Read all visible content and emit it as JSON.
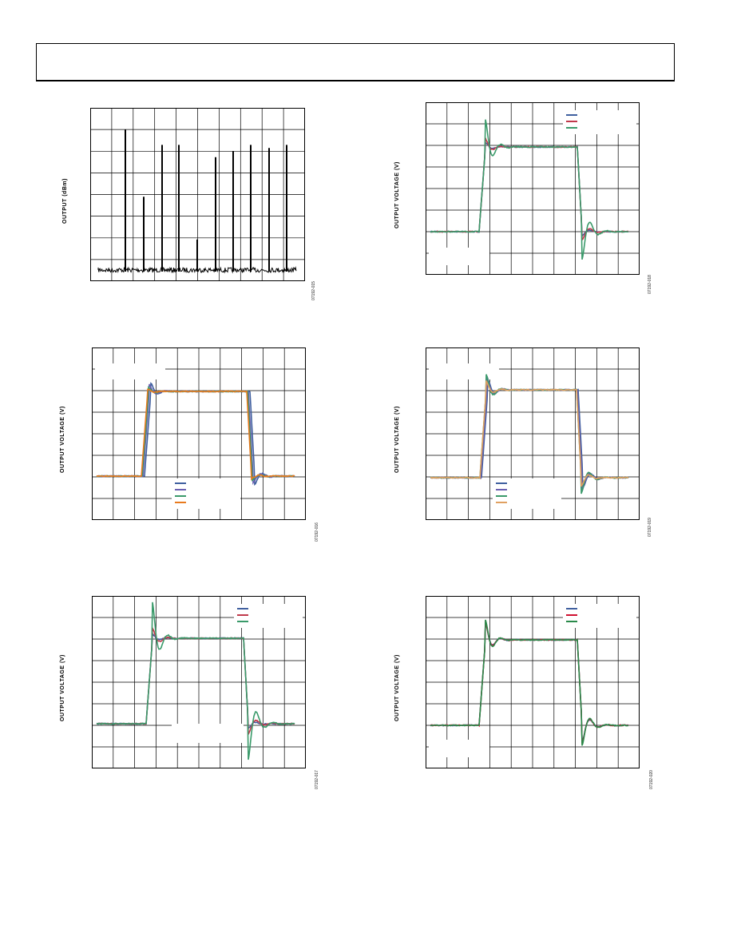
{
  "page": {
    "header_text": ""
  },
  "charts": [
    {
      "id": "c1",
      "ylabel": "OUTPUT (dBm)",
      "code": "07192-015",
      "type": "spectrum"
    },
    {
      "id": "c2",
      "ylabel": "OUTPUT VOLTAGE (V)",
      "code": "07192-018",
      "type": "pulse",
      "series": [
        {
          "color": "#3f5f9f"
        },
        {
          "color": "#c0394b"
        },
        {
          "color": "#3a9a6a"
        }
      ]
    },
    {
      "id": "c3",
      "ylabel": "OUTPUT VOLTAGE (V)",
      "code": "07192-016",
      "type": "pulse",
      "series": [
        {
          "color": "#3f5f9f"
        },
        {
          "color": "#6a5fb0"
        },
        {
          "color": "#3a9a6a"
        },
        {
          "color": "#e87a1e"
        }
      ]
    },
    {
      "id": "c4",
      "ylabel": "OUTPUT VOLTAGE (V)",
      "code": "07192-019",
      "type": "pulse",
      "series": [
        {
          "color": "#3f5f9f"
        },
        {
          "color": "#6a5fb0"
        },
        {
          "color": "#3a9a6a"
        },
        {
          "color": "#e0a060"
        }
      ]
    },
    {
      "id": "c5",
      "ylabel": "OUTPUT VOLTAGE (V)",
      "code": "07192-017",
      "type": "pulse",
      "series": [
        {
          "color": "#3f5f9f"
        },
        {
          "color": "#c0394b"
        },
        {
          "color": "#3a9a6a"
        }
      ]
    },
    {
      "id": "c6",
      "ylabel": "OUTPUT VOLTAGE (V)",
      "code": "07192-020",
      "type": "pulse",
      "series": [
        {
          "color": "#3f5f9f"
        },
        {
          "color": "#d01030"
        },
        {
          "color": "#2a8a4a"
        }
      ]
    }
  ],
  "chart_data": [
    {
      "type": "line",
      "title": "",
      "xlabel": "",
      "ylabel": "OUTPUT (dBm)",
      "grid": true,
      "legend": "none",
      "series": [
        {
          "values": [
            0.05,
            0.92,
            0.05,
            0.48,
            0.05,
            0.82,
            0.05,
            0.82,
            0.05,
            0.2,
            0.05,
            0.74,
            0.05,
            0.78,
            0.05,
            0.82,
            0.05,
            0.8,
            0.05,
            0.82,
            0.05,
            0.82
          ]
        }
      ]
    },
    {
      "type": "line",
      "title": "",
      "xlabel": "",
      "ylabel": "OUTPUT VOLTAGE (V)",
      "grid": true,
      "legend": "top-right",
      "series": [
        {
          "overshoot": 0.05
        },
        {
          "overshoot": 0.1
        },
        {
          "overshoot": 0.33
        }
      ]
    },
    {
      "type": "line",
      "title": "",
      "xlabel": "",
      "ylabel": "OUTPUT VOLTAGE (V)",
      "grid": true,
      "legend": "bottom-center",
      "series": [
        {
          "overshoot": 0.1
        },
        {
          "overshoot": 0.08
        },
        {
          "overshoot": 0.05
        },
        {
          "overshoot": 0.03
        }
      ]
    },
    {
      "type": "line",
      "title": "",
      "xlabel": "",
      "ylabel": "OUTPUT VOLTAGE (V)",
      "grid": true,
      "legend": "bottom-center",
      "series": [
        {
          "overshoot": 0.12
        },
        {
          "overshoot": 0.15
        },
        {
          "overshoot": 0.18
        },
        {
          "overshoot": 0.1
        }
      ]
    },
    {
      "type": "line",
      "title": "",
      "xlabel": "",
      "ylabel": "OUTPUT VOLTAGE (V)",
      "grid": true,
      "legend": "top-right",
      "series": [
        {
          "overshoot": 0.05
        },
        {
          "overshoot": 0.12
        },
        {
          "overshoot": 0.42
        }
      ]
    },
    {
      "type": "line",
      "title": "",
      "xlabel": "",
      "ylabel": "OUTPUT VOLTAGE (V)",
      "grid": true,
      "legend": "top-right",
      "series": [
        {
          "overshoot": 0.2
        },
        {
          "overshoot": 0.22
        },
        {
          "overshoot": 0.24
        }
      ]
    }
  ]
}
